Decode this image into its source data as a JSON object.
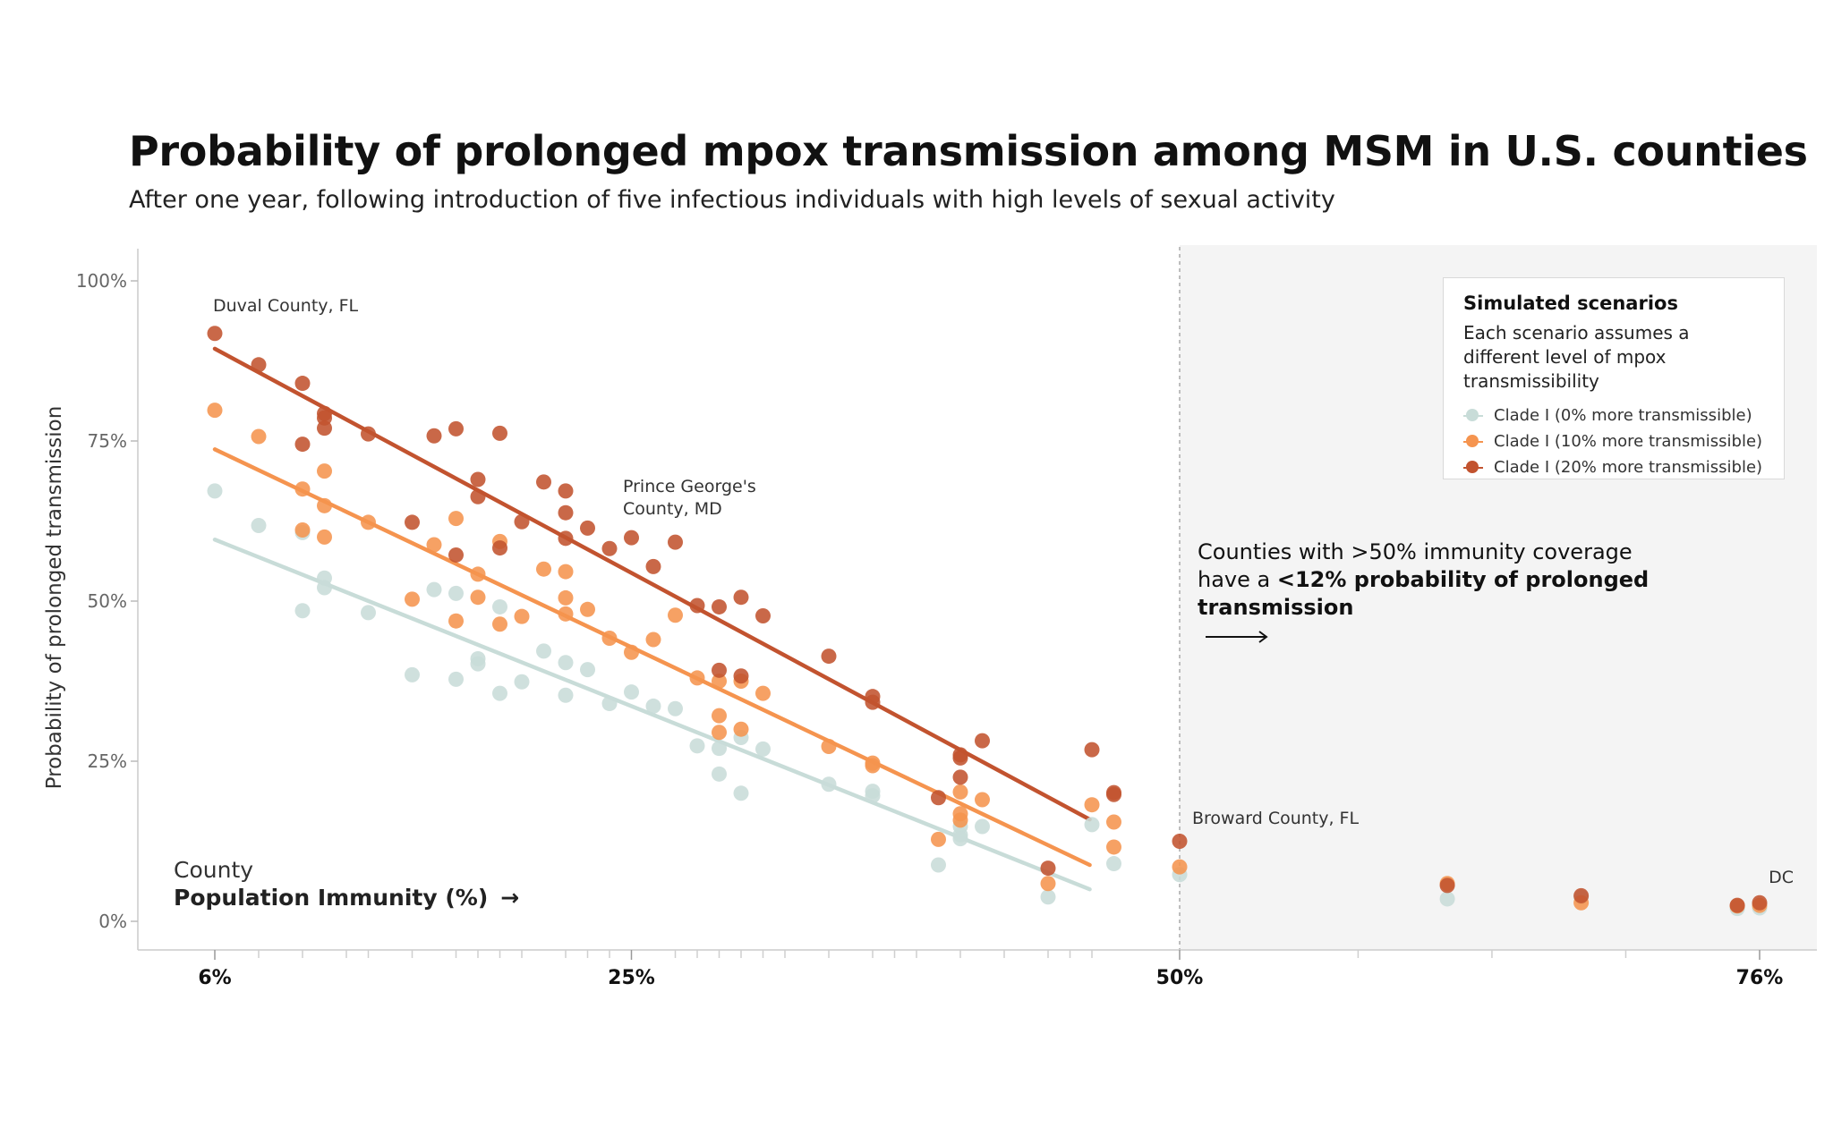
{
  "title": "Probability of prolonged mpox transmission among MSM in U.S. counties",
  "subtitle": "After one year, following introduction of five infectious individuals with high levels of sexual activity",
  "colors": {
    "clade0": "#c8dcd8",
    "clade10": "#f5944f",
    "clade20": "#c2532f",
    "shade": "#f4f4f4",
    "grid": "#cccccc"
  },
  "legend": {
    "title": "Simulated scenarios",
    "description": "Each scenario assumes a different level of mpox transmissibility",
    "items": [
      "Clade I (0% more transmissible)",
      "Clade I (10% more transmissible)",
      "Clade I (20% more transmissible)"
    ]
  },
  "annotation": {
    "line1": "Counties with >50% immunity coverage",
    "line2_prefix": "have a ",
    "line2_bold": "<12% probability of prolonged",
    "line3_bold": "transmission",
    "arrow_icon": "long-right-arrow-icon"
  },
  "x_axis": {
    "label_top": "County",
    "label_main": "Population Immunity (%)",
    "arrow": "→"
  },
  "labels": {
    "duval": "Duval County, FL",
    "pg_line1": "Prince George's",
    "pg_line2": "County, MD",
    "broward": "Broward County, FL",
    "dc": "DC"
  },
  "chart_data": {
    "type": "scatter",
    "title": "Probability of prolonged mpox transmission among MSM in U.S. counties",
    "ylabel": "Probability of prolonged transmission",
    "xlabel": "Population Immunity (%)",
    "ylim": [
      0,
      100
    ],
    "y_ticks": [
      0,
      25,
      50,
      75,
      100
    ],
    "y_tick_labels": [
      "0%",
      "25%",
      "50%",
      "75%",
      "100%"
    ],
    "x_tick_values": [
      6,
      25,
      50,
      76
    ],
    "x_tick_labels": [
      "6%",
      "25%",
      "50%",
      "76%"
    ],
    "x_minor_ticks": [
      8,
      10,
      12,
      13,
      15,
      17,
      18,
      19,
      20,
      22,
      23,
      24,
      27,
      28,
      29,
      30,
      31,
      32,
      34,
      36,
      37,
      38,
      40,
      42,
      44,
      45,
      46,
      58,
      64,
      70
    ],
    "threshold": 50,
    "series": [
      {
        "name": "Clade I (0% more transmissible)",
        "color": "#c8dcd8",
        "trend": [
          [
            6,
            59.6
          ],
          [
            45.9,
            5.0
          ]
        ],
        "points": [
          [
            6,
            67.2
          ],
          [
            8,
            61.8
          ],
          [
            10,
            60.7
          ],
          [
            10,
            48.5
          ],
          [
            11,
            53.6
          ],
          [
            11,
            52.1
          ],
          [
            13,
            48.2
          ],
          [
            15,
            38.5
          ],
          [
            16,
            51.8
          ],
          [
            17,
            51.2
          ],
          [
            17,
            37.8
          ],
          [
            18,
            41.0
          ],
          [
            18,
            40.2
          ],
          [
            19,
            49.1
          ],
          [
            19,
            35.6
          ],
          [
            20,
            37.4
          ],
          [
            21,
            42.2
          ],
          [
            22,
            40.4
          ],
          [
            22,
            35.3
          ],
          [
            23,
            39.3
          ],
          [
            24,
            34.0
          ],
          [
            25,
            35.8
          ],
          [
            26,
            33.6
          ],
          [
            27,
            33.2
          ],
          [
            28,
            27.4
          ],
          [
            29,
            27.0
          ],
          [
            29,
            23.0
          ],
          [
            30,
            20.0
          ],
          [
            30,
            28.7
          ],
          [
            31,
            26.9
          ],
          [
            34,
            21.4
          ],
          [
            36,
            20.3
          ],
          [
            36,
            19.6
          ],
          [
            39,
            8.8
          ],
          [
            40,
            14.8
          ],
          [
            40,
            13.5
          ],
          [
            40,
            12.9
          ],
          [
            41,
            14.8
          ],
          [
            44,
            3.8
          ],
          [
            46,
            15.1
          ],
          [
            47,
            9.0
          ],
          [
            50,
            7.3
          ],
          [
            62,
            3.5
          ],
          [
            68,
            3.8
          ],
          [
            75,
            2.0
          ],
          [
            76,
            2.1
          ]
        ]
      },
      {
        "name": "Clade I (10% more transmissible)",
        "color": "#f5944f",
        "trend": [
          [
            6,
            73.7
          ],
          [
            45.9,
            8.8
          ]
        ],
        "points": [
          [
            6,
            79.8
          ],
          [
            8,
            75.7
          ],
          [
            10,
            67.5
          ],
          [
            10,
            61.1
          ],
          [
            11,
            70.3
          ],
          [
            11,
            64.9
          ],
          [
            11,
            60.0
          ],
          [
            13,
            62.3
          ],
          [
            15,
            50.3
          ],
          [
            16,
            58.8
          ],
          [
            17,
            62.9
          ],
          [
            17,
            46.9
          ],
          [
            18,
            54.2
          ],
          [
            18,
            50.6
          ],
          [
            19,
            59.3
          ],
          [
            19,
            46.4
          ],
          [
            20,
            47.6
          ],
          [
            21,
            55.0
          ],
          [
            22,
            54.6
          ],
          [
            22,
            50.5
          ],
          [
            22,
            48.0
          ],
          [
            23,
            48.7
          ],
          [
            24,
            44.2
          ],
          [
            25,
            42.0
          ],
          [
            26,
            44.0
          ],
          [
            27,
            47.8
          ],
          [
            28,
            38.0
          ],
          [
            29,
            37.5
          ],
          [
            29,
            32.1
          ],
          [
            29,
            29.5
          ],
          [
            30,
            37.5
          ],
          [
            30,
            30.0
          ],
          [
            31,
            35.6
          ],
          [
            34,
            27.3
          ],
          [
            36,
            24.7
          ],
          [
            36,
            24.3
          ],
          [
            39,
            12.8
          ],
          [
            40,
            20.2
          ],
          [
            40,
            16.8
          ],
          [
            40,
            15.8
          ],
          [
            41,
            19.0
          ],
          [
            44,
            5.9
          ],
          [
            46,
            18.2
          ],
          [
            47,
            15.5
          ],
          [
            47,
            11.6
          ],
          [
            50,
            8.5
          ],
          [
            62,
            5.9
          ],
          [
            68,
            2.9
          ],
          [
            75,
            2.4
          ],
          [
            76,
            2.5
          ]
        ]
      },
      {
        "name": "Clade I (20% more transmissible)",
        "color": "#c2532f",
        "trend": [
          [
            6,
            89.4
          ],
          [
            45.9,
            15.9
          ]
        ],
        "points": [
          [
            6,
            91.8
          ],
          [
            8,
            86.9
          ],
          [
            10,
            84.0
          ],
          [
            10,
            74.5
          ],
          [
            11,
            79.3
          ],
          [
            11,
            78.6
          ],
          [
            11,
            77.0
          ],
          [
            13,
            76.1
          ],
          [
            15,
            62.3
          ],
          [
            16,
            75.8
          ],
          [
            17,
            76.9
          ],
          [
            17,
            57.2
          ],
          [
            18,
            69.0
          ],
          [
            18,
            66.3
          ],
          [
            19,
            76.2
          ],
          [
            19,
            58.3
          ],
          [
            20,
            62.4
          ],
          [
            21,
            68.6
          ],
          [
            22,
            67.2
          ],
          [
            22,
            63.8
          ],
          [
            22,
            59.8
          ],
          [
            23,
            61.4
          ],
          [
            24,
            58.2
          ],
          [
            25,
            59.9
          ],
          [
            26,
            55.4
          ],
          [
            27,
            59.2
          ],
          [
            28,
            49.3
          ],
          [
            29,
            49.1
          ],
          [
            29,
            39.2
          ],
          [
            30,
            50.6
          ],
          [
            30,
            38.3
          ],
          [
            31,
            47.7
          ],
          [
            34,
            41.4
          ],
          [
            36,
            35.1
          ],
          [
            36,
            34.2
          ],
          [
            39,
            19.3
          ],
          [
            40,
            26.0
          ],
          [
            40,
            25.5
          ],
          [
            40,
            22.5
          ],
          [
            41,
            28.2
          ],
          [
            44,
            8.3
          ],
          [
            46,
            26.8
          ],
          [
            47,
            20.1
          ],
          [
            47,
            19.8
          ],
          [
            50,
            12.5
          ],
          [
            62,
            5.6
          ],
          [
            68,
            4.0
          ],
          [
            75,
            2.5
          ],
          [
            76,
            2.9
          ]
        ]
      }
    ],
    "annotations": [
      {
        "text": "Duval County, FL",
        "x": 6,
        "y": 91.8
      },
      {
        "text": "Prince George's County, MD",
        "x": 25,
        "y": 59.9
      },
      {
        "text": "Broward County, FL",
        "x": 50,
        "y": 12.5
      },
      {
        "text": "DC",
        "x": 76,
        "y": 2.9
      }
    ]
  }
}
